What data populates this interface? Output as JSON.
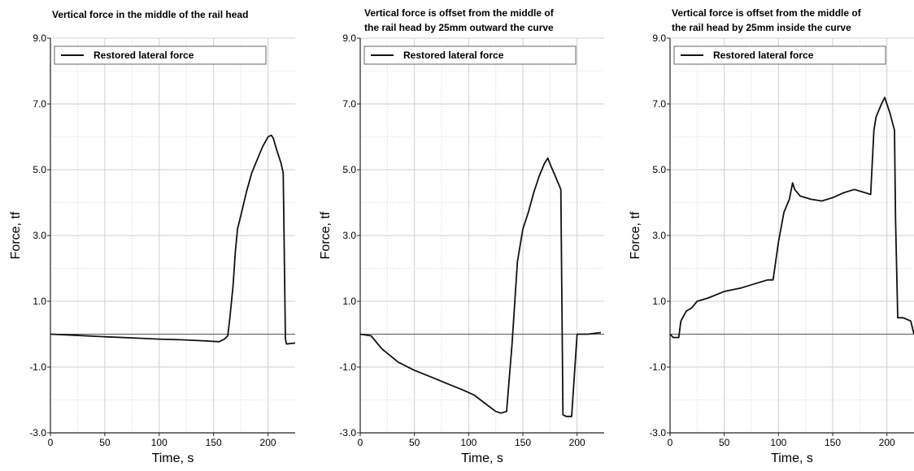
{
  "chart_data": [
    {
      "type": "line",
      "title": [
        "Vertical force in the middle of the rail head"
      ],
      "xlabel": "Time, s",
      "ylabel": "Force, tf",
      "xlim": [
        0,
        225
      ],
      "ylim": [
        -3.0,
        9.0
      ],
      "xticks": [
        0,
        50,
        100,
        150,
        200
      ],
      "yticks": [
        -3.0,
        -1.0,
        1.0,
        3.0,
        5.0,
        7.0,
        9.0
      ],
      "ytick_labels": [
        "-3.0",
        "-1.0",
        "1.0",
        "3.0",
        "5.0",
        "7.0",
        "9.0"
      ],
      "zero_line": 0,
      "grid": true,
      "legend_position": "top",
      "series": [
        {
          "name": "Restored lateral force",
          "x": [
            0,
            20,
            50,
            80,
            100,
            120,
            140,
            155,
            160,
            163,
            165,
            168,
            170,
            172,
            175,
            180,
            185,
            190,
            195,
            200,
            203,
            205,
            208,
            212,
            214,
            216,
            217,
            225
          ],
          "y": [
            0.0,
            -0.03,
            -0.08,
            -0.12,
            -0.15,
            -0.17,
            -0.2,
            -0.23,
            -0.15,
            -0.05,
            0.5,
            1.5,
            2.5,
            3.2,
            3.6,
            4.3,
            4.9,
            5.3,
            5.7,
            6.0,
            6.05,
            5.95,
            5.6,
            5.2,
            4.9,
            -0.15,
            -0.3,
            -0.27
          ]
        }
      ]
    },
    {
      "type": "line",
      "title": [
        "Vertical force is offset from the middle of",
        "the rail head by 25mm outward the curve"
      ],
      "xlabel": "Time, s",
      "ylabel": "Force, tf",
      "xlim": [
        0,
        225
      ],
      "ylim": [
        -3.0,
        9.0
      ],
      "xticks": [
        0,
        50,
        100,
        150,
        200
      ],
      "yticks": [
        -3.0,
        -1.0,
        1.0,
        3.0,
        5.0,
        7.0,
        9.0
      ],
      "ytick_labels": [
        "-3.0",
        "-1.0",
        "1.0",
        "3.0",
        "5.0",
        "7.0",
        "9.0"
      ],
      "zero_line": 0,
      "grid": true,
      "legend_position": "top",
      "series": [
        {
          "name": "Restored lateral force",
          "x": [
            0,
            10,
            20,
            35,
            50,
            65,
            80,
            95,
            105,
            115,
            125,
            130,
            135,
            140,
            145,
            150,
            155,
            160,
            165,
            170,
            173,
            176,
            180,
            185,
            187,
            190,
            195,
            198,
            200,
            210,
            222
          ],
          "y": [
            0.0,
            -0.05,
            -0.45,
            -0.85,
            -1.1,
            -1.3,
            -1.5,
            -1.7,
            -1.85,
            -2.1,
            -2.35,
            -2.4,
            -2.35,
            -0.3,
            2.2,
            3.2,
            3.7,
            4.3,
            4.8,
            5.2,
            5.35,
            5.1,
            4.8,
            4.4,
            -2.45,
            -2.5,
            -2.5,
            -1.0,
            0.0,
            0.0,
            0.05
          ]
        }
      ]
    },
    {
      "type": "line",
      "title": [
        "Vertical force is offset from the middle of",
        "the rail head by 25mm inside the curve"
      ],
      "xlabel": "Time, s",
      "ylabel": "Force, tf",
      "xlim": [
        0,
        225
      ],
      "ylim": [
        -3.0,
        9.0
      ],
      "xticks": [
        0,
        50,
        100,
        150,
        200
      ],
      "yticks": [
        -3.0,
        -1.0,
        1.0,
        3.0,
        5.0,
        7.0,
        9.0
      ],
      "ytick_labels": [
        "-3.0",
        "-1.0",
        "1.0",
        "3.0",
        "5.0",
        "7.0",
        "9.0"
      ],
      "zero_line": 0,
      "grid": true,
      "legend_position": "top",
      "series": [
        {
          "name": "Restored lateral force",
          "x": [
            0,
            3,
            8,
            10,
            15,
            20,
            25,
            35,
            50,
            65,
            80,
            90,
            95,
            100,
            105,
            110,
            113,
            115,
            120,
            130,
            140,
            150,
            160,
            170,
            180,
            185,
            188,
            190,
            195,
            198,
            203,
            207,
            208,
            210,
            215,
            222,
            225
          ],
          "y": [
            0.0,
            -0.1,
            -0.1,
            0.4,
            0.7,
            0.8,
            1.0,
            1.1,
            1.3,
            1.4,
            1.55,
            1.65,
            1.65,
            2.8,
            3.7,
            4.1,
            4.6,
            4.4,
            4.2,
            4.1,
            4.05,
            4.15,
            4.3,
            4.4,
            4.3,
            4.25,
            6.2,
            6.6,
            7.0,
            7.2,
            6.7,
            6.2,
            3.5,
            0.5,
            0.5,
            0.4,
            0.0
          ]
        }
      ]
    }
  ]
}
